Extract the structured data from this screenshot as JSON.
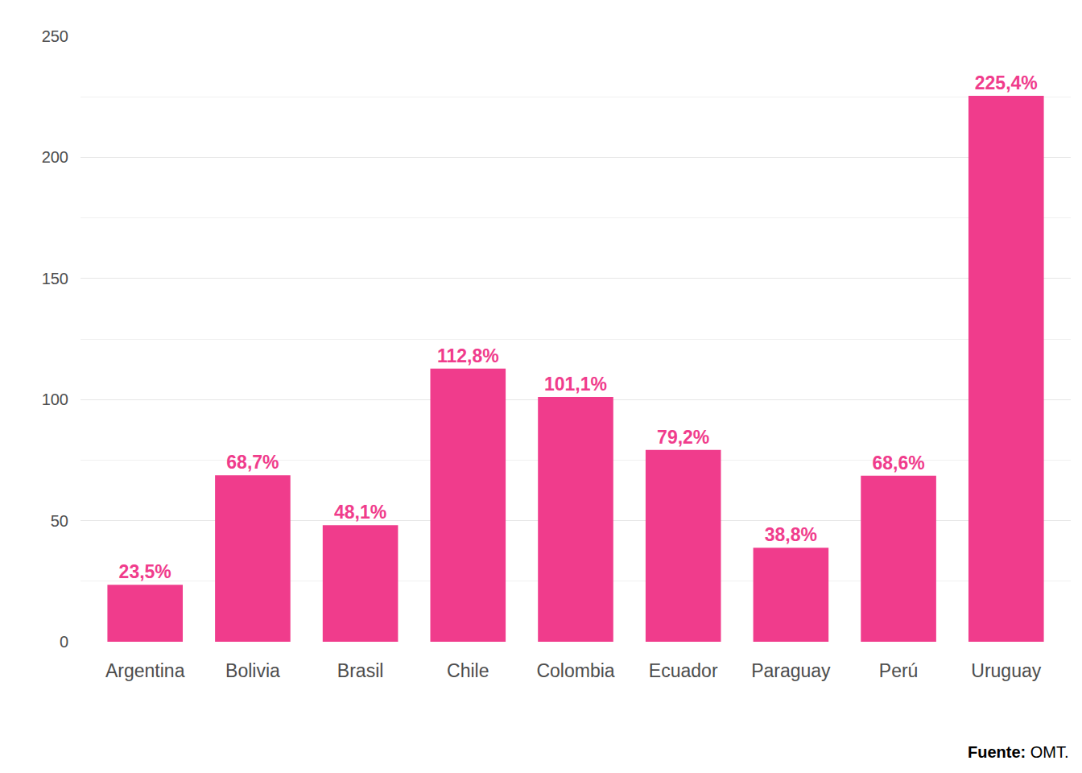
{
  "chart_data": {
    "type": "bar",
    "categories": [
      "Argentina",
      "Bolivia",
      "Brasil",
      "Chile",
      "Colombia",
      "Ecuador",
      "Paraguay",
      "Perú",
      "Uruguay"
    ],
    "values": [
      23.5,
      68.7,
      48.1,
      112.8,
      101.1,
      79.2,
      38.8,
      68.6,
      225.4
    ],
    "value_labels": [
      "23,5%",
      "68,7%",
      "48,1%",
      "112,8%",
      "101,1%",
      "79,2%",
      "38,8%",
      "68,6%",
      "225,4%"
    ],
    "data_labels": true,
    "color": "#f03c8c",
    "ylim": [
      0,
      250
    ],
    "yticks": [
      0,
      50,
      100,
      150,
      200,
      250
    ],
    "grid": true,
    "source": "Fuente: OMT."
  }
}
